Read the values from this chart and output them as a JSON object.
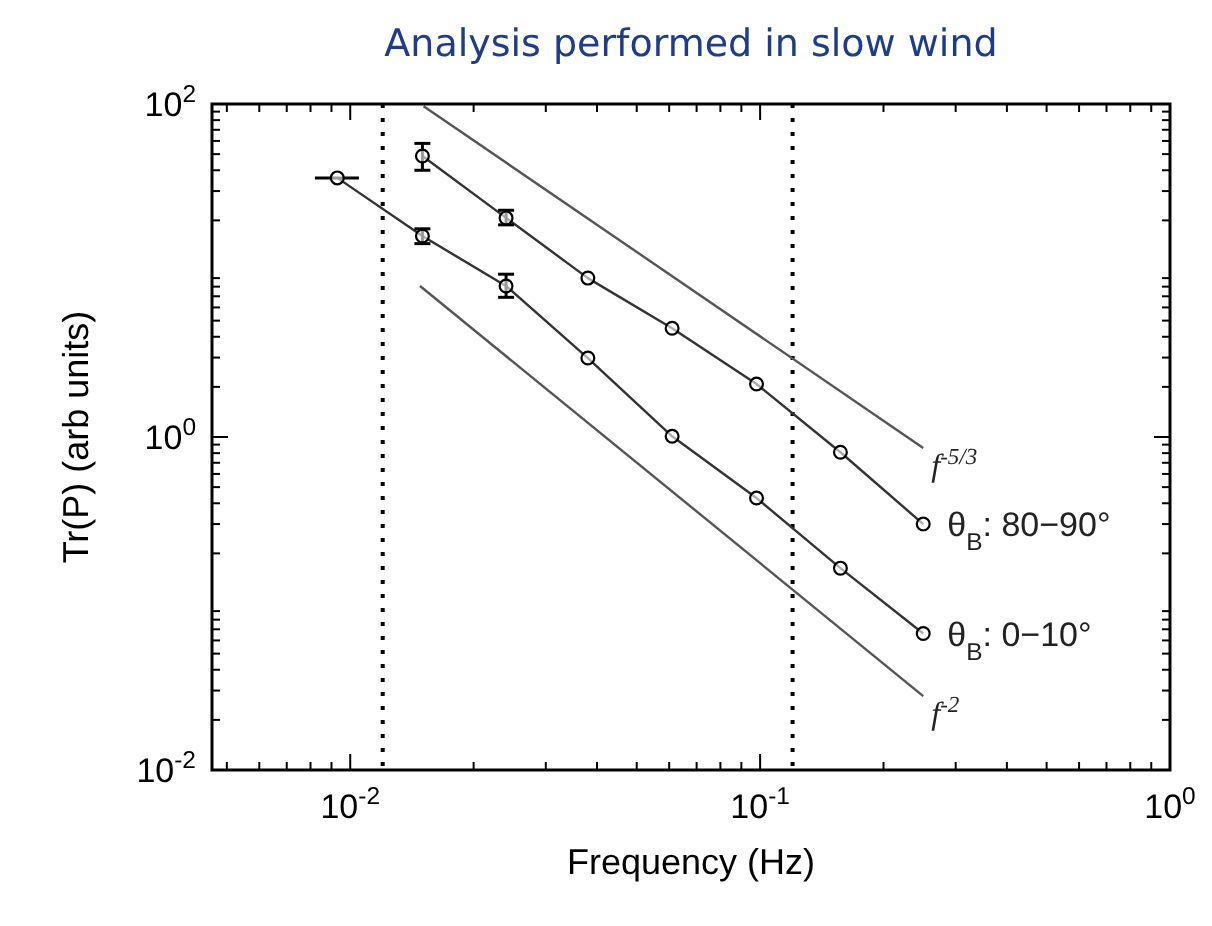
{
  "chart_data": {
    "type": "line",
    "title": "Analysis performed in slow wind",
    "xlabel": "Frequency (Hz)",
    "ylabel": "Tr(P) (arb units)",
    "log": "xy",
    "grid": false,
    "legend": "right",
    "marker": "circle",
    "xlim": [
      0.0046,
      1
    ],
    "ylim": [
      0.01,
      100
    ],
    "xticks": [
      {
        "value": 0.01,
        "label": "10$^{-2}$"
      },
      {
        "value": 0.1,
        "label": "10$^{-1}$"
      },
      {
        "value": 1,
        "label": "10$^{0}$"
      }
    ],
    "yticks": [
      {
        "value": 0.01,
        "label": "10$^{-2}$"
      },
      {
        "value": 1,
        "label": "10$^{0}$"
      },
      {
        "value": 100,
        "label": "10$^{2}$"
      }
    ],
    "ref_lines": [
      {
        "axis": "x",
        "value": 0.012,
        "color": "#000000",
        "line_style": "dotted"
      },
      {
        "axis": "x",
        "value": 0.12,
        "color": "#000000",
        "line_style": "dotted"
      }
    ],
    "series": [
      {
        "name": "θ$_{B}$: 80−90°",
        "color": "#333333",
        "x": [
          0.015,
          0.024,
          0.038,
          0.061,
          0.098,
          0.157,
          0.25
        ],
        "values": [
          48.7,
          20.7,
          9.0,
          4.5,
          2.08,
          0.81,
          0.3
        ],
        "errors": [
          [
            40,
            58
          ],
          [
            18.8,
            23
          ],
          null,
          null,
          null,
          null,
          null
        ]
      },
      {
        "name": "θ$_{B}$: 0−10°",
        "color": "#333333",
        "x": [
          0.0093,
          0.015,
          0.024,
          0.038,
          0.061,
          0.098,
          0.157,
          0.25
        ],
        "values": [
          36,
          16.1,
          8.07,
          2.98,
          1.01,
          0.43,
          0.163,
          0.066
        ],
        "errors": [
          null,
          [
            14.5,
            17.8
          ],
          [
            6.9,
            9.5
          ],
          null,
          null,
          null,
          null,
          null
        ],
        "xerrors": [
          [
            0.0082,
            0.0105
          ],
          null,
          null,
          null,
          null,
          null,
          null,
          null
        ]
      },
      {
        "name": "f$^{-5/3}$",
        "color": "#555555",
        "marker": "none",
        "x": [
          0.0151,
          0.25
        ],
        "values": [
          97,
          0.86
        ]
      },
      {
        "name": "f$^{-2}$",
        "color": "#555555",
        "marker": "none",
        "x": [
          0.0148,
          0.25
        ],
        "values": [
          8.07,
          0.0278
        ]
      }
    ]
  }
}
